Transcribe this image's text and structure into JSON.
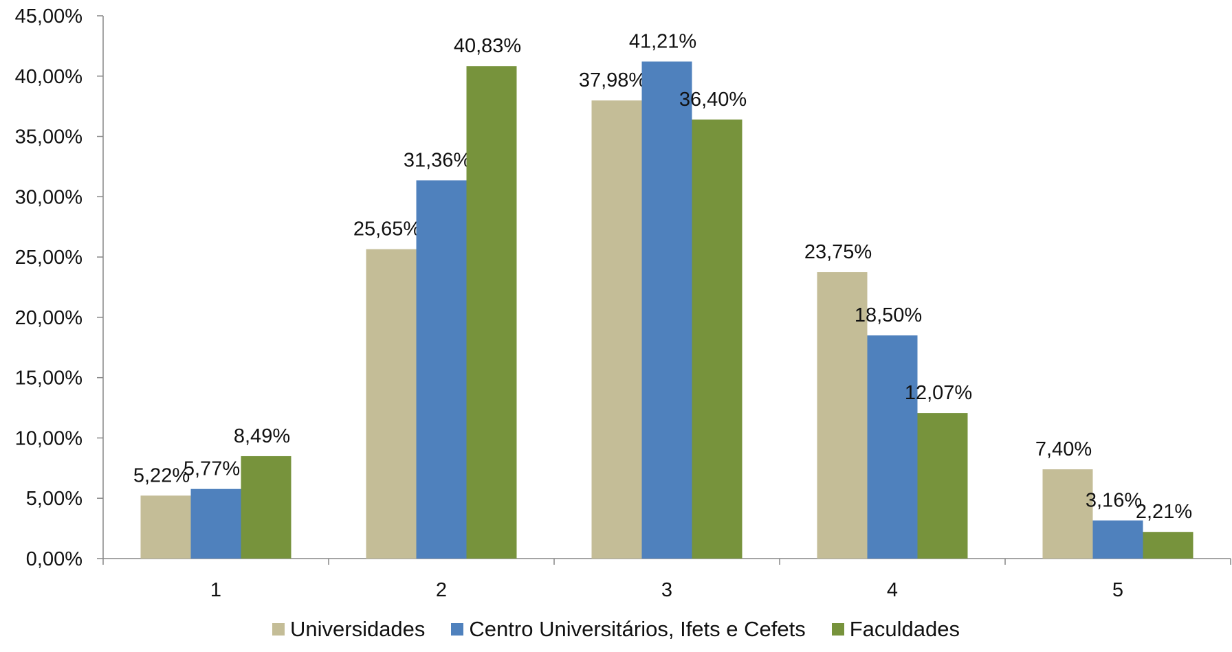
{
  "chart_data": {
    "type": "bar",
    "title": "",
    "xlabel": "",
    "ylabel": "",
    "ylim": [
      0,
      45
    ],
    "categories": [
      "1",
      "2",
      "3",
      "4",
      "5"
    ],
    "y_ticks": [
      "0,00%",
      "5,00%",
      "10,00%",
      "15,00%",
      "20,00%",
      "25,00%",
      "30,00%",
      "35,00%",
      "40,00%",
      "45,00%"
    ],
    "grid": false,
    "legend_position": "bottom",
    "series": [
      {
        "name": "Universidades",
        "color": "#c4bd97",
        "values": [
          5.22,
          25.65,
          37.98,
          23.75,
          7.4
        ],
        "labels": [
          "5,22%",
          "25,65%",
          "37,98%",
          "23,75%",
          "7,40%"
        ]
      },
      {
        "name": "Centro Universitários, Ifets e Cefets",
        "color": "#4f81bd",
        "values": [
          5.77,
          31.36,
          41.21,
          18.5,
          3.16
        ],
        "labels": [
          "5,77%",
          "31,36%",
          "41,21%",
          "18,50%",
          "3,16%"
        ]
      },
      {
        "name": "Faculdades",
        "color": "#77933c",
        "values": [
          8.49,
          40.83,
          36.4,
          12.07,
          2.21
        ],
        "labels": [
          "8,49%",
          "40,83%",
          "36,40%",
          "12,07%",
          "2,21%"
        ]
      }
    ]
  }
}
